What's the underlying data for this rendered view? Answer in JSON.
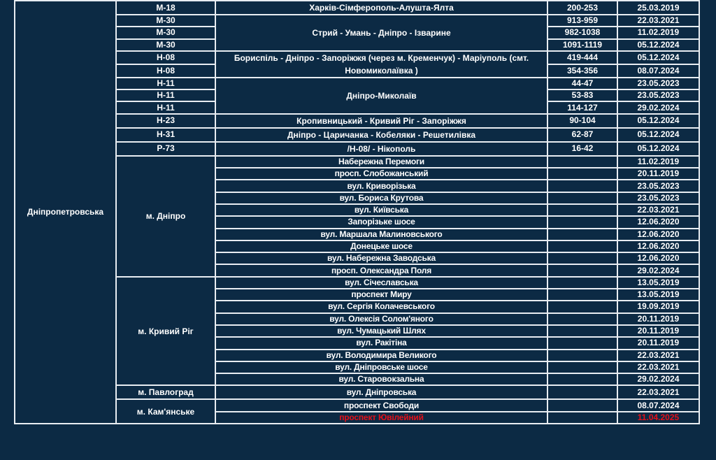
{
  "region": "Дніпропетровська",
  "colors": {
    "background": "#0c2a44",
    "border": "#e8edf2",
    "text": "#ffffff",
    "highlight": "#e3101a"
  },
  "highways": [
    {
      "name": "Харків-Сімферополь-Алушта-Ялта",
      "entries": [
        {
          "road": "М-18",
          "km": "200-253",
          "date": "25.03.2019"
        }
      ]
    },
    {
      "name": "Стрий - Умань - Дніпро - Ізварине",
      "entries": [
        {
          "road": "М-30",
          "km": "913-959",
          "date": "22.03.2021"
        },
        {
          "road": "М-30",
          "km": "982-1038",
          "date": "11.02.2019"
        },
        {
          "road": "М-30",
          "km": "1091-1119",
          "date": "05.12.2024"
        }
      ]
    },
    {
      "name": "Бориспіль - Дніпро - Запоріжжя (через м. Кременчук) - Маріуполь (смт. Новомиколаївка )",
      "entries": [
        {
          "road": "Н-08",
          "km": "419-444",
          "date": "05.12.2024"
        },
        {
          "road": "Н-08",
          "km": "354-356",
          "date": "08.07.2024"
        }
      ]
    },
    {
      "name": "Дніпро-Миколаїв",
      "entries": [
        {
          "road": "Н-11",
          "km": "44-47",
          "date": "23.05.2023"
        },
        {
          "road": "Н-11",
          "km": "53-83",
          "date": "23.05.2023"
        },
        {
          "road": "Н-11",
          "km": "114-127",
          "date": "29.02.2024"
        }
      ]
    },
    {
      "name": "Кропивницький - Кривий Ріг - Запоріжжя",
      "entries": [
        {
          "road": "Н-23",
          "km": "90-104",
          "date": "05.12.2024"
        }
      ]
    },
    {
      "name": "Дніпро - Царичанка - Кобеляки - Решетилівка",
      "entries": [
        {
          "road": "Н-31",
          "km": "62-87",
          "date": "05.12.2024"
        }
      ]
    },
    {
      "name": "/Н-08/ - Нікополь",
      "entries": [
        {
          "road": "Р-73",
          "km": "16-42",
          "date": "05.12.2024"
        }
      ]
    }
  ],
  "cities": [
    {
      "city": "м. Дніпро",
      "streets": [
        {
          "name": "Набережна Перемоги",
          "km": "",
          "date": "11.02.2019"
        },
        {
          "name": "просп. Слобожанський",
          "km": "",
          "date": "20.11.2019"
        },
        {
          "name": "вул. Криворізька",
          "km": "",
          "date": "23.05.2023"
        },
        {
          "name": "вул. Бориса Крутова",
          "km": "",
          "date": "23.05.2023"
        },
        {
          "name": "вул. Київська",
          "km": "",
          "date": "22.03.2021"
        },
        {
          "name": "Запорізьке шосе",
          "km": "",
          "date": "12.06.2020"
        },
        {
          "name": "вул. Маршала Малиновського",
          "km": "",
          "date": "12.06.2020"
        },
        {
          "name": "Донецьке шосе",
          "km": "",
          "date": "12.06.2020"
        },
        {
          "name": "вул. Набережна Заводська",
          "km": "",
          "date": "12.06.2020"
        },
        {
          "name": "просп. Олександра Поля",
          "km": "",
          "date": "29.02.2024"
        }
      ]
    },
    {
      "city": "м. Кривий Ріг",
      "streets": [
        {
          "name": "вул. Січеславська",
          "km": "",
          "date": "13.05.2019"
        },
        {
          "name": "проспект Миру",
          "km": "",
          "date": "13.05.2019"
        },
        {
          "name": "вул. Сергія Колачевського",
          "km": "",
          "date": "19.09.2019"
        },
        {
          "name": "вул. Олексія Солом'яного",
          "km": "",
          "date": "20.11.2019"
        },
        {
          "name": "вул. Чумацький Шлях",
          "km": "",
          "date": "20.11.2019"
        },
        {
          "name": "вул. Ракітіна",
          "km": "",
          "date": "20.11.2019"
        },
        {
          "name": "вул. Володимира Великого",
          "km": "",
          "date": "22.03.2021"
        },
        {
          "name": "вул. Дніпровське шосе",
          "km": "",
          "date": "22.03.2021"
        },
        {
          "name": "вул. Старовокзальна",
          "km": "",
          "date": "29.02.2024"
        }
      ]
    },
    {
      "city": "м. Павлоград",
      "streets": [
        {
          "name": "вул. Дніпровська",
          "km": "",
          "date": "22.03.2021"
        }
      ]
    },
    {
      "city": "м. Кам'янське",
      "streets": [
        {
          "name": "проспект Свободи",
          "km": "",
          "date": "08.07.2024"
        },
        {
          "name": "проспект Ювілейний",
          "km": "",
          "date": "11.04.2025",
          "highlight": true
        }
      ]
    }
  ]
}
